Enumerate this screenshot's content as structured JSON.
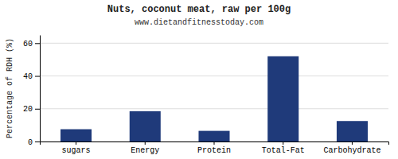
{
  "chart_data": {
    "type": "bar",
    "title": "Nuts, coconut meat, raw per 100g",
    "subtitle": "www.dietandfitnesstoday.com",
    "categories": [
      "sugars",
      "Energy",
      "Protein",
      "Total-Fat",
      "Carbohydrate"
    ],
    "values": [
      7.5,
      18.5,
      6.5,
      52.0,
      12.5
    ],
    "color": "#1f3a7a",
    "ylabel": "Percentage of RDH (%)",
    "ylim": [
      0,
      65
    ],
    "yticks": [
      0,
      20,
      40,
      60
    ],
    "grid": true
  }
}
